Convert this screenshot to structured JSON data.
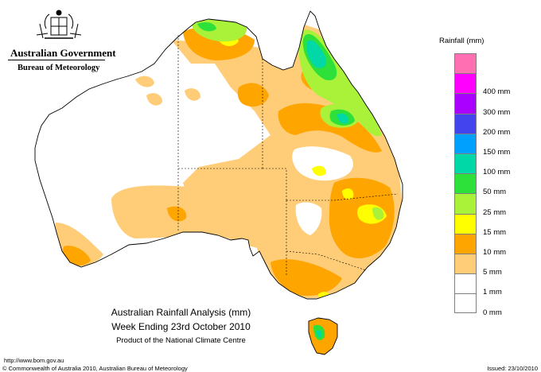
{
  "header": {
    "government": "Australian Government",
    "bureau": "Bureau of Meteorology"
  },
  "legend": {
    "title": "Rainfall (mm)",
    "bins": [
      {
        "label": "",
        "color": "#ff6fb1"
      },
      {
        "label": "400 mm",
        "color": "#ff00ff"
      },
      {
        "label": "300 mm",
        "color": "#aa00ff"
      },
      {
        "label": "200 mm",
        "color": "#4444ee"
      },
      {
        "label": "150 mm",
        "color": "#00a0ff"
      },
      {
        "label": "100 mm",
        "color": "#00d8a8"
      },
      {
        "label": "50 mm",
        "color": "#2ee03a"
      },
      {
        "label": "25 mm",
        "color": "#aaf23a"
      },
      {
        "label": "15 mm",
        "color": "#ffff00"
      },
      {
        "label": "10 mm",
        "color": "#ffa500"
      },
      {
        "label": "5 mm",
        "color": "#ffcc77"
      },
      {
        "label": "1 mm",
        "color": "#ffffff"
      },
      {
        "label": "0 mm",
        "color": "#ffffff"
      }
    ]
  },
  "caption": {
    "line1": "Australian Rainfall Analysis (mm)",
    "line2": "Week Ending 23rd October 2010",
    "line3": "Product of the National Climate Centre"
  },
  "footer": {
    "url": "http://www.bom.gov.au",
    "copyright": "© Commonwealth of Australia 2010, Australian Bureau of Meteorology",
    "issued": "Issued: 23/10/2010"
  },
  "colors": {
    "band_1mm": "#ffcc77",
    "band_5mm": "#ffa500",
    "band_10mm": "#ffff00",
    "band_15mm": "#aaf23a",
    "band_25mm": "#2ee03a",
    "band_50mm": "#00d8a8",
    "band_100mm": "#00a0ff",
    "outline": "#000000"
  }
}
